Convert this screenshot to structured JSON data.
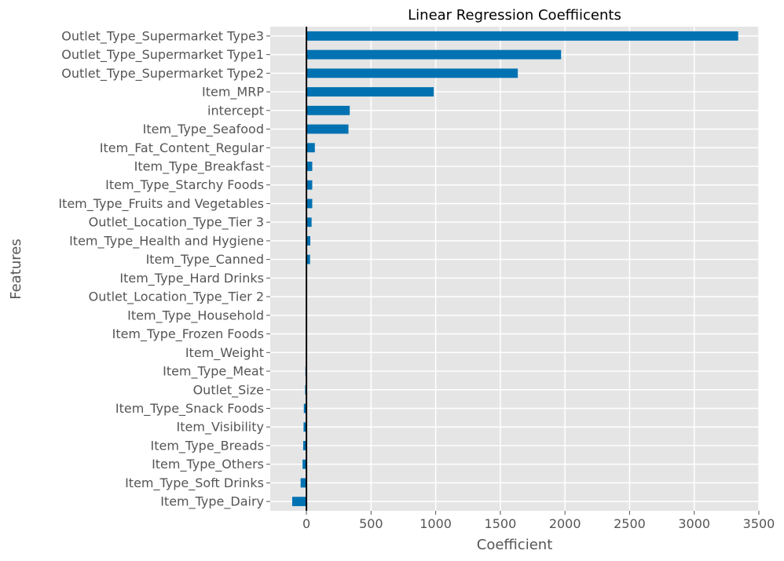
{
  "chart_data": {
    "type": "bar",
    "orientation": "horizontal",
    "title": "Linear Regression Coeffiicents",
    "xlabel": "Coefficient",
    "ylabel": "Features",
    "xlim": [
      -280,
      3500
    ],
    "xticks": [
      0,
      500,
      1000,
      1500,
      2000,
      2500,
      3000,
      3500
    ],
    "grid": true,
    "colors": {
      "bar": "#0072B2",
      "background": "#E5E5E5",
      "grid": "#FFFFFF",
      "zero_line": "#000000"
    },
    "categories": [
      "Outlet_Type_Supermarket Type3",
      "Outlet_Type_Supermarket Type1",
      "Outlet_Type_Supermarket Type2",
      "Item_MRP",
      "intercept",
      "Item_Type_Seafood",
      "Item_Fat_Content_Regular",
      "Item_Type_Breakfast",
      "Item_Type_Starchy Foods",
      "Item_Type_Fruits and Vegetables",
      "Outlet_Location_Type_Tier 3",
      "Item_Type_Health and Hygiene",
      "Item_Type_Canned",
      "Item_Type_Hard Drinks",
      "Outlet_Location_Type_Tier 2",
      "Item_Type_Household",
      "Item_Type_Frozen Foods",
      "Item_Weight",
      "Item_Type_Meat",
      "Outlet_Size",
      "Item_Type_Snack Foods",
      "Item_Visibility",
      "Item_Type_Breads",
      "Item_Type_Others",
      "Item_Type_Soft Drinks",
      "Item_Type_Dairy"
    ],
    "values": [
      3340,
      1970,
      1635,
      985,
      335,
      325,
      65,
      45,
      45,
      45,
      40,
      30,
      28,
      3,
      2,
      1,
      0,
      0,
      -8,
      -10,
      -20,
      -22,
      -25,
      -30,
      -45,
      -110
    ]
  }
}
